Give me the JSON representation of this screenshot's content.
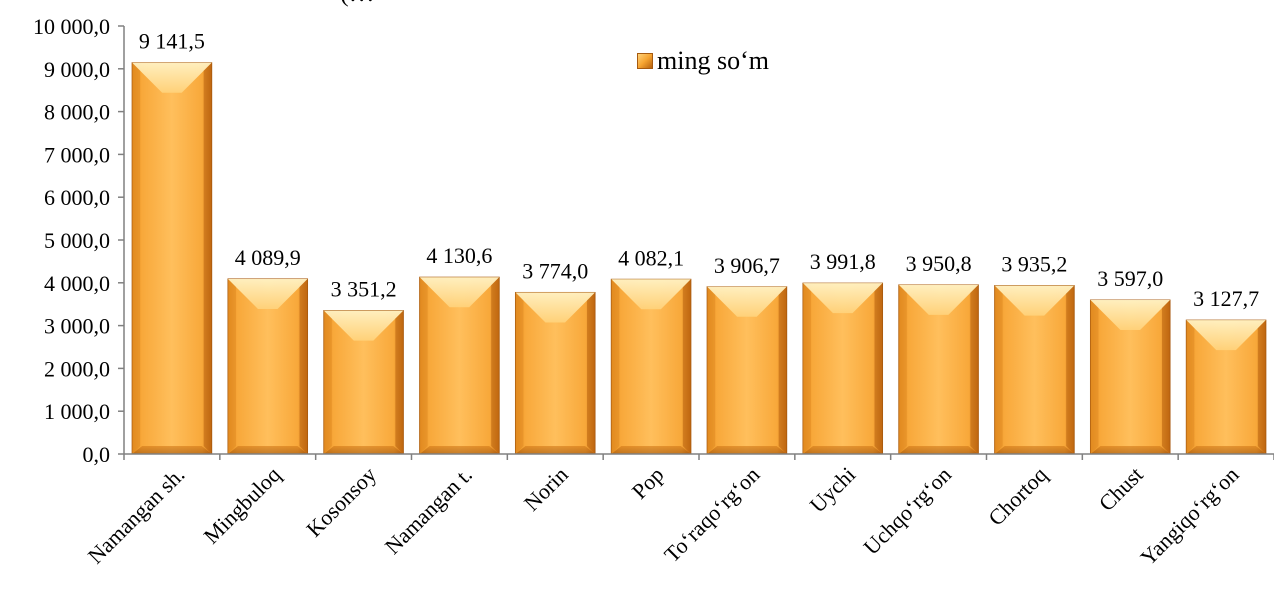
{
  "chart_data": {
    "type": "bar",
    "title_partial": "(…",
    "categories": [
      "Namangan sh.",
      "Mingbuloq",
      "Kosonsoy",
      "Namangan t.",
      "Norin",
      "Pop",
      "To‘raqo‘rg‘on",
      "Uychi",
      "Uchqo‘rg‘on",
      "Chortoq",
      "Chust",
      "Yangiqo‘rg‘on"
    ],
    "series": [
      {
        "name": "ming so‘m",
        "values": [
          9141.5,
          4089.9,
          3351.2,
          4130.6,
          3774.0,
          4082.1,
          3906.7,
          3991.8,
          3950.8,
          3935.2,
          3597.0,
          3127.7
        ]
      }
    ],
    "value_labels": [
      "9 141,5",
      "4 089,9",
      "3 351,2",
      "4 130,6",
      "3 774,0",
      "4 082,1",
      "3 906,7",
      "3 991,8",
      "3 950,8",
      "3 935,2",
      "3 597,0",
      "3 127,7"
    ],
    "ylim": [
      0,
      10000
    ],
    "y_ticks": [
      0,
      1000,
      2000,
      3000,
      4000,
      5000,
      6000,
      7000,
      8000,
      9000,
      10000
    ],
    "y_tick_labels": [
      "0,0",
      "1 000,0",
      "2 000,0",
      "3 000,0",
      "4 000,0",
      "5 000,0",
      "6 000,0",
      "7 000,0",
      "8 000,0",
      "9 000,0",
      "10 000,0"
    ],
    "xlabel": "",
    "ylabel": "",
    "legend": {
      "placement": "top-center",
      "label": "ming so‘m"
    },
    "grid": false,
    "colors": {
      "bar_light": "#ffd889",
      "bar_mid": "#f6a431",
      "bar_dark": "#b8620e",
      "axis": "#808080"
    }
  }
}
